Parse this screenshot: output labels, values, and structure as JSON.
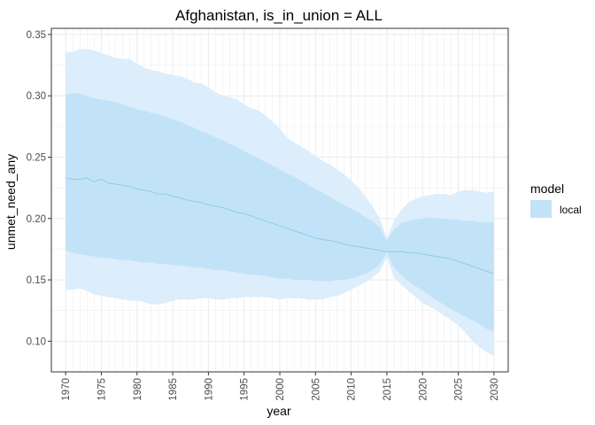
{
  "chart_data": {
    "type": "area",
    "title": "Afghanistan, is_in_union = ALL",
    "xlabel": "year",
    "ylabel": "unmet_need_any",
    "xlim": [
      1968,
      2032
    ],
    "ylim": [
      0.075,
      0.355
    ],
    "xticks": [
      1970,
      1975,
      1980,
      1985,
      1990,
      1995,
      2000,
      2005,
      2010,
      2015,
      2020,
      2025,
      2030
    ],
    "yticks": [
      0.1,
      0.15,
      0.2,
      0.25,
      0.3,
      0.35
    ],
    "ytick_labels": [
      "0.10",
      "0.15",
      "0.20",
      "0.25",
      "0.30",
      "0.35"
    ],
    "grid": true,
    "legend": {
      "title": "model",
      "position": "right",
      "entries": [
        "local"
      ]
    },
    "colors": {
      "band_outer": "#dcedfb",
      "band_inner": "#c2e3f7",
      "line": "#8fcbeb",
      "grid": "#ebebeb",
      "panel_border": "#333333",
      "text": "#4d4d4d",
      "title": "#000000"
    },
    "series": [
      {
        "name": "local",
        "x": [
          1970,
          1971,
          1972,
          1973,
          1974,
          1975,
          1976,
          1977,
          1978,
          1979,
          1980,
          1981,
          1982,
          1983,
          1984,
          1985,
          1986,
          1987,
          1988,
          1989,
          1990,
          1991,
          1992,
          1993,
          1994,
          1995,
          1996,
          1997,
          1998,
          1999,
          2000,
          2001,
          2002,
          2003,
          2004,
          2005,
          2006,
          2007,
          2008,
          2009,
          2010,
          2011,
          2012,
          2013,
          2014,
          2015,
          2016,
          2017,
          2018,
          2019,
          2020,
          2021,
          2022,
          2023,
          2024,
          2025,
          2026,
          2027,
          2028,
          2029,
          2030
        ],
        "median": [
          0.233,
          0.232,
          0.232,
          0.233,
          0.23,
          0.232,
          0.229,
          0.228,
          0.227,
          0.226,
          0.224,
          0.223,
          0.222,
          0.22,
          0.22,
          0.218,
          0.217,
          0.215,
          0.214,
          0.213,
          0.211,
          0.21,
          0.209,
          0.207,
          0.205,
          0.204,
          0.202,
          0.2,
          0.198,
          0.196,
          0.194,
          0.192,
          0.19,
          0.188,
          0.186,
          0.184,
          0.183,
          0.182,
          0.181,
          0.179,
          0.178,
          0.177,
          0.176,
          0.175,
          0.174,
          0.173,
          0.173,
          0.173,
          0.172,
          0.172,
          0.171,
          0.17,
          0.169,
          0.168,
          0.167,
          0.165,
          0.163,
          0.161,
          0.159,
          0.157,
          0.155
        ],
        "lower80": [
          0.174,
          0.172,
          0.171,
          0.17,
          0.169,
          0.168,
          0.168,
          0.167,
          0.166,
          0.166,
          0.165,
          0.164,
          0.164,
          0.163,
          0.163,
          0.162,
          0.162,
          0.161,
          0.16,
          0.16,
          0.159,
          0.158,
          0.158,
          0.157,
          0.156,
          0.155,
          0.154,
          0.154,
          0.153,
          0.152,
          0.151,
          0.151,
          0.15,
          0.15,
          0.15,
          0.149,
          0.149,
          0.149,
          0.15,
          0.15,
          0.151,
          0.153,
          0.155,
          0.158,
          0.163,
          0.172,
          0.16,
          0.154,
          0.149,
          0.145,
          0.141,
          0.137,
          0.133,
          0.13,
          0.126,
          0.123,
          0.12,
          0.117,
          0.114,
          0.11,
          0.108
        ],
        "upper80": [
          0.301,
          0.302,
          0.302,
          0.3,
          0.298,
          0.297,
          0.296,
          0.295,
          0.293,
          0.291,
          0.289,
          0.288,
          0.286,
          0.285,
          0.283,
          0.281,
          0.279,
          0.276,
          0.274,
          0.271,
          0.269,
          0.266,
          0.264,
          0.261,
          0.258,
          0.255,
          0.252,
          0.249,
          0.246,
          0.243,
          0.24,
          0.237,
          0.234,
          0.231,
          0.227,
          0.224,
          0.221,
          0.218,
          0.214,
          0.211,
          0.208,
          0.205,
          0.201,
          0.198,
          0.193,
          0.182,
          0.191,
          0.196,
          0.198,
          0.199,
          0.2,
          0.201,
          0.2,
          0.2,
          0.199,
          0.199,
          0.198,
          0.198,
          0.197,
          0.197,
          0.197
        ],
        "lower95": [
          0.142,
          0.142,
          0.143,
          0.141,
          0.138,
          0.137,
          0.136,
          0.135,
          0.134,
          0.133,
          0.133,
          0.132,
          0.13,
          0.13,
          0.131,
          0.133,
          0.134,
          0.134,
          0.134,
          0.135,
          0.135,
          0.134,
          0.134,
          0.135,
          0.135,
          0.136,
          0.136,
          0.136,
          0.136,
          0.135,
          0.134,
          0.135,
          0.135,
          0.135,
          0.134,
          0.134,
          0.134,
          0.136,
          0.137,
          0.139,
          0.142,
          0.145,
          0.148,
          0.152,
          0.157,
          0.168,
          0.152,
          0.146,
          0.141,
          0.136,
          0.131,
          0.128,
          0.125,
          0.121,
          0.117,
          0.113,
          0.107,
          0.1,
          0.095,
          0.091,
          0.088
        ],
        "upper95": [
          0.335,
          0.336,
          0.338,
          0.338,
          0.337,
          0.335,
          0.333,
          0.331,
          0.33,
          0.33,
          0.326,
          0.323,
          0.321,
          0.32,
          0.318,
          0.317,
          0.316,
          0.314,
          0.311,
          0.31,
          0.307,
          0.303,
          0.3,
          0.299,
          0.297,
          0.293,
          0.29,
          0.288,
          0.284,
          0.279,
          0.273,
          0.266,
          0.262,
          0.259,
          0.255,
          0.251,
          0.247,
          0.244,
          0.24,
          0.236,
          0.231,
          0.225,
          0.218,
          0.21,
          0.2,
          0.184,
          0.198,
          0.207,
          0.213,
          0.216,
          0.218,
          0.219,
          0.22,
          0.22,
          0.219,
          0.222,
          0.223,
          0.223,
          0.222,
          0.221,
          0.222
        ]
      }
    ]
  }
}
